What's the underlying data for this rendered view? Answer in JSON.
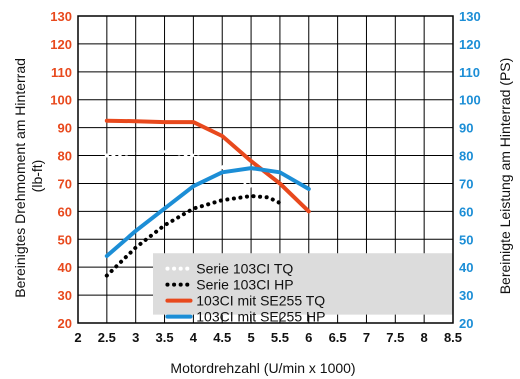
{
  "chart_data": {
    "type": "line",
    "title": "",
    "xlabel": "Motordrehzahl (U/min x 1000)",
    "ylabel_left": [
      "Bereinigtes Drehmoment am Hinterrad",
      "(lb-ft)"
    ],
    "ylabel_right": "Bereinigte Leistung am Hinterrad (PS)",
    "xlim": [
      2,
      8.5
    ],
    "ylim": [
      20,
      130
    ],
    "x_ticks": [
      "2",
      "2.5",
      "3",
      "3.5",
      "4",
      "4.5",
      "5",
      "5.5",
      "6",
      "6.5",
      "7",
      "7.5",
      "8",
      "8.5"
    ],
    "y_ticks_left": [
      "20",
      "30",
      "40",
      "50",
      "60",
      "70",
      "80",
      "90",
      "100",
      "110",
      "120",
      "130"
    ],
    "y_ticks_right": [
      "20",
      "30",
      "40",
      "50",
      "60",
      "70",
      "80",
      "90",
      "100",
      "110",
      "120",
      "130"
    ],
    "grid": true,
    "legend_position": "bottom-center",
    "colors": {
      "left_axis": "#e8491d",
      "right_axis": "#1c8ed6",
      "grid": "#000000",
      "legend_bg": "#dcdcdc"
    },
    "series": [
      {
        "name": "Serie 103CI TQ",
        "color": "#ffffff",
        "style": "dotted",
        "x": [
          2.5,
          3.0,
          3.5,
          4.0,
          4.5,
          5.0,
          5.5
        ],
        "y": [
          80,
          81,
          81.5,
          80,
          76,
          69,
          60
        ]
      },
      {
        "name": "Serie 103CI HP",
        "color": "#000000",
        "style": "dotted",
        "x": [
          2.5,
          3.0,
          3.5,
          4.0,
          4.5,
          5.0,
          5.3,
          5.5
        ],
        "y": [
          37,
          47,
          55,
          61,
          64,
          65.5,
          65,
          63
        ]
      },
      {
        "name": "103CI mit SE255 TQ",
        "color": "#e8491d",
        "style": "solid",
        "x": [
          2.5,
          3.0,
          3.5,
          4.0,
          4.5,
          5.0,
          5.5,
          6.0
        ],
        "y": [
          92.5,
          92.3,
          92,
          92,
          87,
          78,
          70,
          60
        ]
      },
      {
        "name": "103CI mit SE255 HP",
        "color": "#1c8ed6",
        "style": "solid",
        "x": [
          2.5,
          3.0,
          3.5,
          4.0,
          4.5,
          5.0,
          5.5,
          6.0
        ],
        "y": [
          44,
          53,
          61,
          69,
          74,
          75.5,
          74,
          68
        ]
      }
    ]
  }
}
